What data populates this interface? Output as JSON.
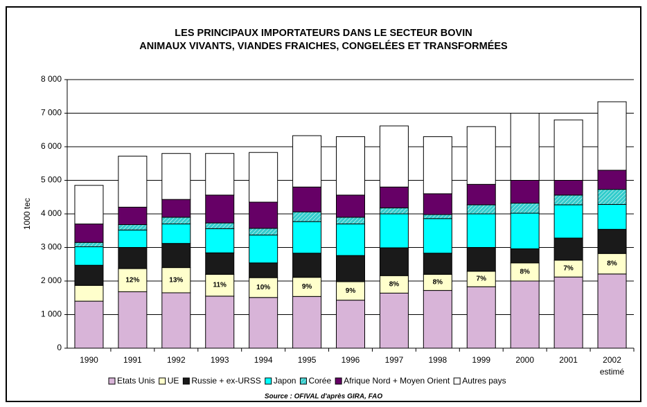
{
  "chart_data": {
    "type": "stacked_bar",
    "title": "LES PRINCIPAUX IMPORTATEURS DANS LE SECTEUR BOVIN",
    "subtitle": "ANIMAUX VIVANTS, VIANDES FRAICHES, CONGELÉES ET TRANSFORMÉES",
    "y_label": "1000 tec",
    "source": "Source : OFIVAL d'après GIRA, FAO",
    "categories": [
      "1990",
      "1991",
      "1992",
      "1993",
      "1994",
      "1995",
      "1996",
      "1997",
      "1998",
      "1999",
      "2000",
      "2001",
      "2002"
    ],
    "category_note": {
      "index": 12,
      "text": "estimé"
    },
    "ylim": [
      0,
      8000
    ],
    "yticks": [
      0,
      {
        "value": 1000,
        "label": "1 000"
      },
      {
        "value": 2000,
        "label": "2 000"
      },
      {
        "value": 3000,
        "label": "3 000"
      },
      {
        "value": 4000,
        "label": "4 000"
      },
      {
        "value": 5000,
        "label": "5 000"
      },
      {
        "value": 6000,
        "label": "6 000"
      },
      {
        "value": 7000,
        "label": "7 000"
      },
      {
        "value": 8000,
        "label": "8 000"
      }
    ],
    "grid": true,
    "legend": "bottom",
    "series": [
      {
        "name": "Etats Unis",
        "color": "#d8b4d8",
        "values": [
          1400,
          1680,
          1650,
          1550,
          1510,
          1540,
          1430,
          1640,
          1720,
          1830,
          2000,
          2120,
          2210
        ]
      },
      {
        "name": "UE",
        "color": "#ffffcc",
        "values": [
          470,
          690,
          750,
          650,
          590,
          570,
          550,
          520,
          480,
          460,
          540,
          500,
          610
        ],
        "share_labels": [
          null,
          "12%",
          "13%",
          "11%",
          "10%",
          "9%",
          "9%",
          "8%",
          "8%",
          "7%",
          "8%",
          "7%",
          "8%"
        ]
      },
      {
        "name": "Russie + ex-URSS",
        "color": "#1a1a1a",
        "values": [
          600,
          630,
          720,
          640,
          440,
          720,
          780,
          830,
          630,
          710,
          420,
          660,
          720
        ]
      },
      {
        "name": "Japon",
        "color": "#00ffff",
        "values": [
          550,
          520,
          580,
          720,
          830,
          940,
          940,
          1010,
          1030,
          1000,
          1060,
          990,
          740
        ]
      },
      {
        "name": "Corée",
        "color": "#33cccc",
        "values": [
          130,
          160,
          200,
          170,
          200,
          290,
          200,
          180,
          120,
          270,
          300,
          290,
          450
        ]
      },
      {
        "name": "Afrique Nord + Moyen Orient",
        "color": "#660066",
        "values": [
          550,
          520,
          530,
          830,
          780,
          740,
          660,
          620,
          620,
          610,
          680,
          440,
          570
        ]
      },
      {
        "name": "Autres pays",
        "color": "#ffffff",
        "values": [
          1150,
          1520,
          1370,
          1240,
          1480,
          1530,
          1740,
          1820,
          1700,
          1720,
          2000,
          1800,
          2040
        ]
      }
    ]
  }
}
